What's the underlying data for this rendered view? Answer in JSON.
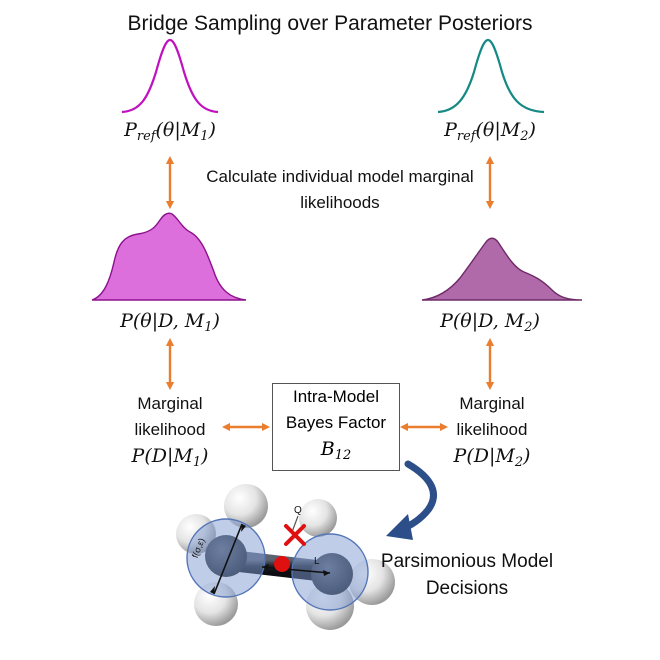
{
  "title": "Bridge Sampling over Parameter Posteriors",
  "center_caption": "Calculate individual model marginal likelihoods",
  "ref_left": {
    "P": "P",
    "sub": "ref",
    "rest": "(θ|M",
    "idx": "1",
    "close": ")"
  },
  "ref_right": {
    "P": "P",
    "sub": "ref",
    "rest": "(θ|M",
    "idx": "2",
    "close": ")"
  },
  "post_left": {
    "body": "P(θ|D, M",
    "idx": "1",
    "close": ")"
  },
  "post_right": {
    "body": "P(θ|D, M",
    "idx": "2",
    "close": ")"
  },
  "marg_left": {
    "line1": "Marginal",
    "line2": "likelihood",
    "body": "P(D|M",
    "idx": "1",
    "close": ")"
  },
  "marg_right": {
    "line1": "Marginal",
    "line2": "likelihood",
    "body": "P(D|M",
    "idx": "2",
    "close": ")"
  },
  "bayes_box": {
    "line1": "Intra-Model",
    "line2": "Bayes Factor",
    "B": "B",
    "sub": "12"
  },
  "decision": "Parsimonious Model Decisions",
  "molecule": {
    "label_f": "f(σ,ε)",
    "label_l": "L",
    "label_q": "Q"
  },
  "colors": {
    "magenta_line": "#c010c0",
    "teal_line": "#158a85",
    "post_left_fill": "#dc6fdc",
    "post_right_fill": "#b069a9",
    "arrow_orange": "#ea7d2e",
    "arrow_blue": "#2c4f8a",
    "cross_red": "#e01010"
  }
}
